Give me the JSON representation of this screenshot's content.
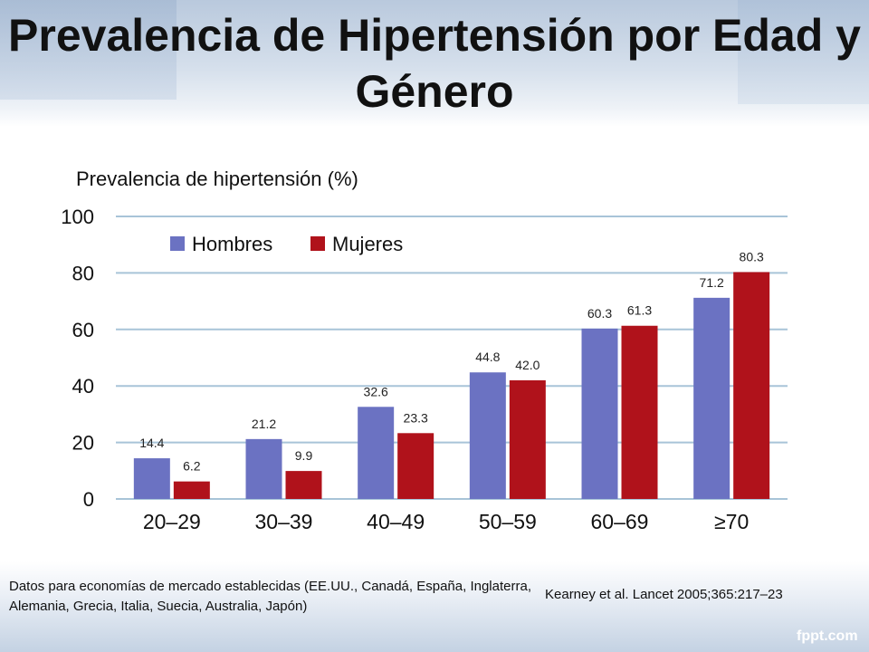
{
  "title": "Prevalencia de Hipertensión por Edad y Género",
  "chart_data": {
    "type": "bar",
    "ylabel": "Prevalencia de hipertensión (%)",
    "ylim": [
      0,
      100
    ],
    "yticks": [
      0,
      20,
      40,
      60,
      80,
      100
    ],
    "grid": true,
    "legend_position": "top-left",
    "categories": [
      "20‒29",
      "30‒39",
      "40‒49",
      "50‒59",
      "60‒69",
      "≥70"
    ],
    "series": [
      {
        "name": "Hombres",
        "color": "#6b72c2",
        "values": [
          14.4,
          21.2,
          32.6,
          44.8,
          60.3,
          71.2
        ],
        "labels": [
          "14.4",
          "21.2",
          "32.6",
          "44.8",
          "60.3",
          "71.2"
        ]
      },
      {
        "name": "Mujeres",
        "color": "#b0121b",
        "values": [
          6.2,
          9.9,
          23.3,
          42.0,
          61.3,
          80.3
        ],
        "labels": [
          "6.2",
          "9.9",
          "23.3",
          "42.0",
          "61.3",
          "80.3"
        ]
      }
    ]
  },
  "footnote_left": "Datos para economías de mercado establecidas (EE.UU., Canadá, España, Inglaterra, Alemania, Grecia, Italia, Suecia, Australia, Japón)",
  "footnote_right": "Kearney et al. Lancet 2005;365:217‒23",
  "watermark": "fppt.com",
  "colors": {
    "grid": "#a8c4d8",
    "title": "#111111"
  }
}
